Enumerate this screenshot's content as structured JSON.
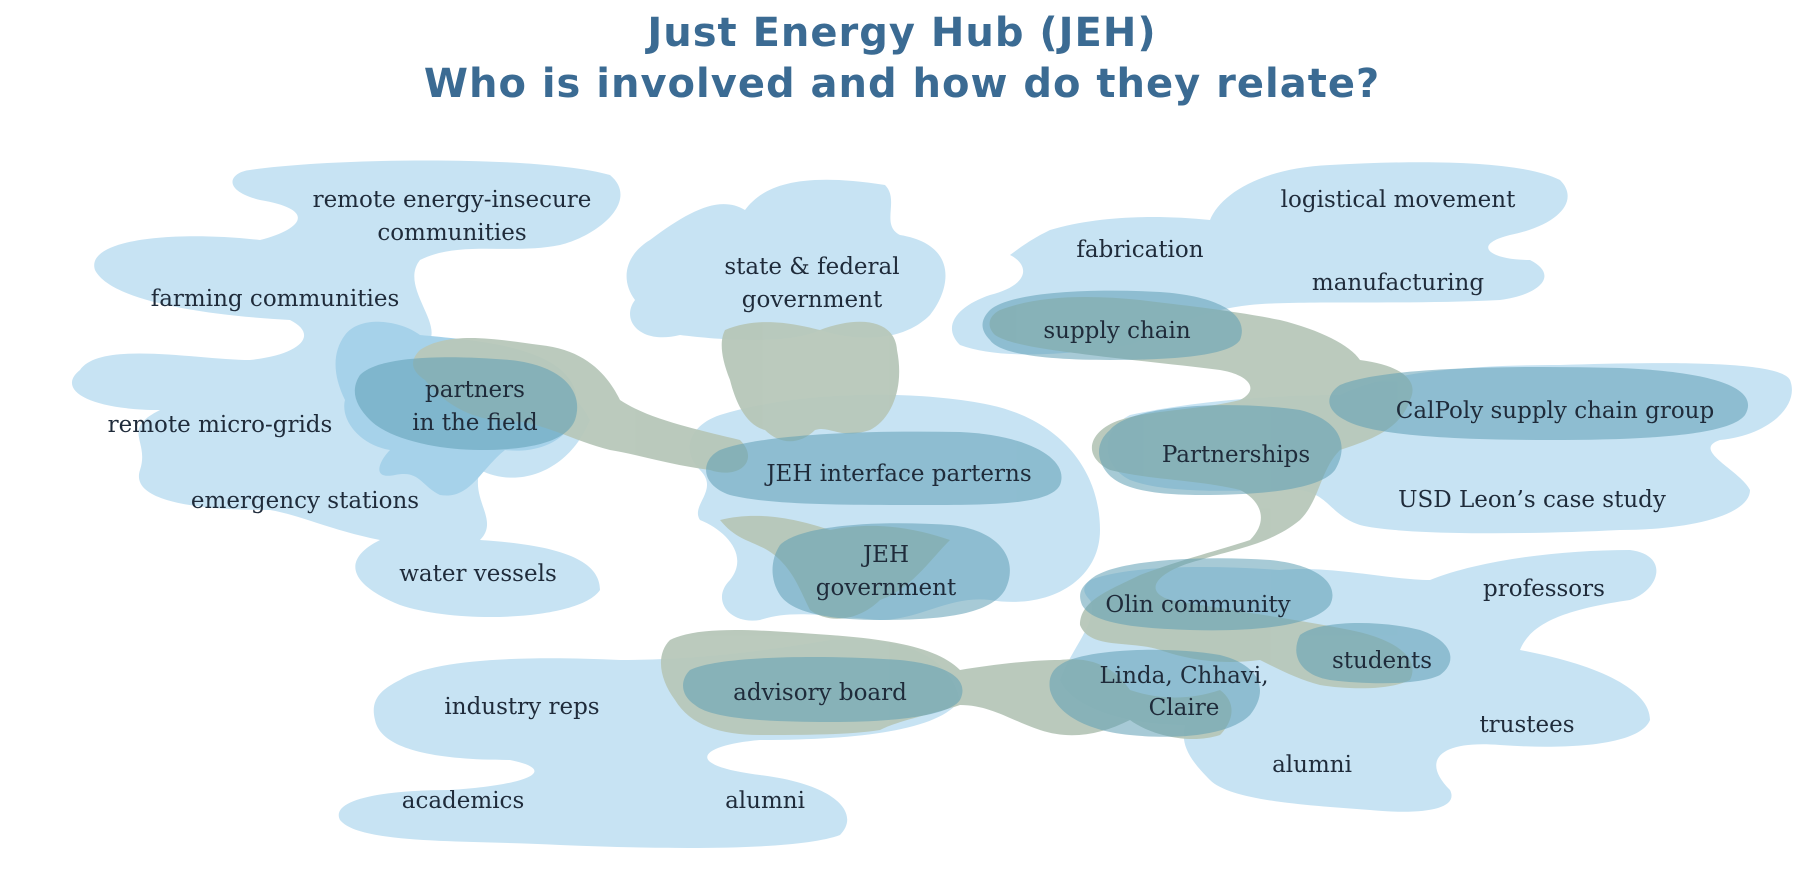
{
  "header": {
    "title_line1": "Just Energy Hub (JEH)",
    "title_line2": "Who is involved and how do they relate?"
  },
  "colors": {
    "title": "#3b6b93",
    "light_blue": "#c7e3f3",
    "medium_blue": "#a6d2ea",
    "sage": "#b7c7b9",
    "dark_teal": "#5f9fb4",
    "text": "#1f2b3a"
  },
  "nodes": {
    "remote_energy_insecure": "remote energy-insecure",
    "remote_energy_insecure_2": "communities",
    "farming_communities": "farming communities",
    "remote_micro_grids": "remote micro-grids",
    "emergency_stations": "emergency stations",
    "water_vessels": "water vessels",
    "partners_field_1": "partners",
    "partners_field_2": "in the field",
    "state_federal_1": "state & federal",
    "state_federal_2": "government",
    "jeh_interface": "JEH interface parterns",
    "jeh_government_1": "JEH",
    "jeh_government_2": "government",
    "advisory_board": "advisory board",
    "industry_reps": "industry reps",
    "academics": "academics",
    "alumni_left": "alumni",
    "logistical_movement": "logistical movement",
    "fabrication": "fabrication",
    "manufacturing": "manufacturing",
    "supply_chain": "supply chain",
    "calpoly": "CalPoly supply chain group",
    "partnerships": "Partnerships",
    "usd_leon": "USD Leon’s case study",
    "olin_community": "Olin community",
    "professors": "professors",
    "students": "students",
    "linda_1": "Linda, Chhavi,",
    "linda_2": "Claire",
    "trustees": "trustees",
    "alumni_right": "alumni"
  }
}
